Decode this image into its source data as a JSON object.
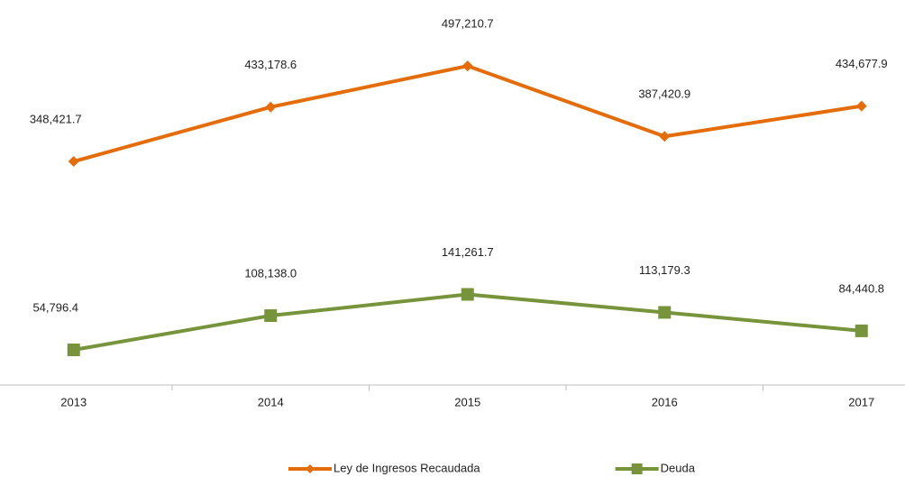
{
  "chart_data": {
    "type": "line",
    "categories": [
      "2013",
      "2014",
      "2015",
      "2016",
      "2017"
    ],
    "series": [
      {
        "name": "Ley de Ingresos Recaudada",
        "color": "#e46c0a",
        "marker": "diamond",
        "values": [
          348421.7,
          433178.6,
          497210.7,
          387420.9,
          434677.9
        ],
        "value_labels": [
          "348,421.7",
          "433,178.6",
          "497,210.7",
          "387,420.9",
          "434,677.9"
        ]
      },
      {
        "name": "Deuda",
        "color": "#77933c",
        "marker": "square",
        "values": [
          54796.4,
          108138.0,
          141261.7,
          113179.3,
          84440.8
        ],
        "value_labels": [
          "54,796.4",
          "108,138.0",
          "141,261.7",
          "113,179.3",
          "84,440.8"
        ]
      }
    ],
    "ylim": [
      0,
      600000
    ],
    "grid": false,
    "legend": "bottom"
  }
}
